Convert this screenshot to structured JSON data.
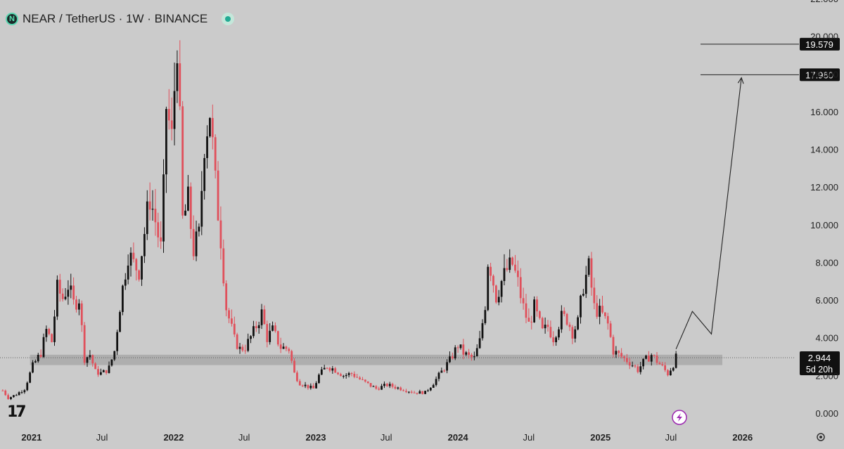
{
  "header": {
    "logo_letter": "N",
    "title": "NEAR / TetherUS · 1W · BINANCE",
    "status_color": "#22ab94"
  },
  "watermark": "TradingView",
  "bolt_icon": "lightning-icon",
  "colors": {
    "background": "#cbcbcb",
    "up": "#111111",
    "down": "#e0505b",
    "support_zone": "#a9a9a9",
    "price_tag": "#111111"
  },
  "chart_data": {
    "type": "candlestick",
    "symbol": "NEAR / TetherUS",
    "interval": "1W",
    "exchange": "BINANCE",
    "y_axis": {
      "ticks": [
        0,
        2,
        4,
        6,
        8,
        10,
        12,
        14,
        16,
        18,
        20,
        22
      ],
      "tick_labels": [
        "0.000",
        "2.000",
        "4.000",
        "6.000",
        "8.000",
        "10.000",
        "12.000",
        "14.000",
        "16.000",
        "18.000",
        "20.000",
        "22.000"
      ],
      "ylim": [
        0,
        22
      ]
    },
    "x_axis": {
      "tick_labels": [
        "2021",
        "Jul",
        "2022",
        "Jul",
        "2023",
        "Jul",
        "2024",
        "Jul",
        "2025",
        "Jul",
        "2026"
      ],
      "tick_dates": [
        "2021-01-01",
        "2021-07-01",
        "2022-01-01",
        "2022-07-01",
        "2023-01-01",
        "2023-07-01",
        "2024-01-01",
        "2024-07-01",
        "2025-01-01",
        "2025-07-01",
        "2026-01-01"
      ],
      "bold": [
        true,
        false,
        true,
        false,
        true,
        false,
        true,
        false,
        true,
        false,
        true
      ],
      "xlim": [
        "2020-10-12",
        "2026-05-15"
      ]
    },
    "close_path": [
      [
        "2020-10-19",
        1.2
      ],
      [
        "2020-11-02",
        0.8
      ],
      [
        "2020-11-23",
        1.0
      ],
      [
        "2020-12-14",
        1.3
      ],
      [
        "2021-01-04",
        2.5
      ],
      [
        "2021-01-25",
        3.2
      ],
      [
        "2021-02-08",
        4.4
      ],
      [
        "2021-02-22",
        3.8
      ],
      [
        "2021-03-08",
        6.6
      ],
      [
        "2021-03-22",
        6.1
      ],
      [
        "2021-04-05",
        6.8
      ],
      [
        "2021-04-19",
        5.8
      ],
      [
        "2021-05-03",
        6.1
      ],
      [
        "2021-05-17",
        2.9
      ],
      [
        "2021-05-31",
        3.1
      ],
      [
        "2021-06-14",
        2.2
      ],
      [
        "2021-07-01",
        2.1
      ],
      [
        "2021-07-19",
        2.4
      ],
      [
        "2021-08-02",
        3.3
      ],
      [
        "2021-08-16",
        5.7
      ],
      [
        "2021-09-06",
        8.5
      ],
      [
        "2021-09-20",
        7.9
      ],
      [
        "2021-10-04",
        7.6
      ],
      [
        "2021-10-18",
        9.6
      ],
      [
        "2021-11-01",
        11.5
      ],
      [
        "2021-11-15",
        10.2
      ],
      [
        "2021-12-01",
        8.5
      ],
      [
        "2021-12-13",
        16.3
      ],
      [
        "2021-12-27",
        14.5
      ],
      [
        "2022-01-10",
        20.0
      ],
      [
        "2022-01-24",
        10.2
      ],
      [
        "2022-02-07",
        11.2
      ],
      [
        "2022-02-21",
        8.7
      ],
      [
        "2022-03-07",
        9.4
      ],
      [
        "2022-03-21",
        14.5
      ],
      [
        "2022-04-04",
        16.1
      ],
      [
        "2022-04-18",
        12.1
      ],
      [
        "2022-05-02",
        9.3
      ],
      [
        "2022-05-16",
        5.6
      ],
      [
        "2022-06-06",
        3.9
      ],
      [
        "2022-06-20",
        3.4
      ],
      [
        "2022-07-04",
        3.5
      ],
      [
        "2022-07-25",
        4.3
      ],
      [
        "2022-08-15",
        5.3
      ],
      [
        "2022-08-29",
        4.0
      ],
      [
        "2022-09-12",
        4.4
      ],
      [
        "2022-10-03",
        3.5
      ],
      [
        "2022-10-24",
        3.4
      ],
      [
        "2022-11-07",
        2.1
      ],
      [
        "2022-11-21",
        1.6
      ],
      [
        "2022-12-12",
        1.4
      ],
      [
        "2022-12-26",
        1.3
      ],
      [
        "2023-01-09",
        2.0
      ],
      [
        "2023-01-30",
        2.5
      ],
      [
        "2023-02-20",
        2.3
      ],
      [
        "2023-03-13",
        2.0
      ],
      [
        "2023-04-03",
        2.1
      ],
      [
        "2023-05-01",
        1.7
      ],
      [
        "2023-06-05",
        1.3
      ],
      [
        "2023-07-03",
        1.5
      ],
      [
        "2023-08-07",
        1.3
      ],
      [
        "2023-09-11",
        1.1
      ],
      [
        "2023-10-09",
        1.1
      ],
      [
        "2023-10-30",
        1.6
      ],
      [
        "2023-11-20",
        2.2
      ],
      [
        "2023-12-11",
        2.8
      ],
      [
        "2024-01-01",
        3.6
      ],
      [
        "2024-01-15",
        3.2
      ],
      [
        "2024-01-29",
        3.0
      ],
      [
        "2024-02-12",
        2.9
      ],
      [
        "2024-02-26",
        3.8
      ],
      [
        "2024-03-11",
        5.8
      ],
      [
        "2024-03-18",
        8.1
      ],
      [
        "2024-03-25",
        7.7
      ],
      [
        "2024-04-08",
        6.2
      ],
      [
        "2024-04-22",
        7.0
      ],
      [
        "2024-05-06",
        7.6
      ],
      [
        "2024-05-20",
        7.9
      ],
      [
        "2024-06-03",
        6.9
      ],
      [
        "2024-06-17",
        5.6
      ],
      [
        "2024-07-01",
        4.7
      ],
      [
        "2024-07-15",
        5.6
      ],
      [
        "2024-08-05",
        4.3
      ],
      [
        "2024-08-19",
        4.6
      ],
      [
        "2024-09-02",
        4.0
      ],
      [
        "2024-09-23",
        5.1
      ],
      [
        "2024-10-07",
        5.0
      ],
      [
        "2024-10-21",
        4.3
      ],
      [
        "2024-11-04",
        4.8
      ],
      [
        "2024-11-18",
        6.8
      ],
      [
        "2024-12-02",
        7.7
      ],
      [
        "2024-12-16",
        5.6
      ],
      [
        "2025-01-06",
        5.2
      ],
      [
        "2025-01-20",
        4.7
      ],
      [
        "2025-02-03",
        3.3
      ],
      [
        "2025-02-24",
        3.0
      ],
      [
        "2025-03-17",
        2.7
      ],
      [
        "2025-04-07",
        2.3
      ],
      [
        "2025-04-21",
        2.7
      ],
      [
        "2025-05-12",
        3.1
      ],
      [
        "2025-06-02",
        2.6
      ],
      [
        "2025-06-23",
        2.1
      ],
      [
        "2025-07-07",
        2.6
      ],
      [
        "2025-07-14",
        2.944
      ]
    ],
    "support_zone": {
      "from": 2.55,
      "to": 3.1,
      "start": "2020-12-28",
      "end": "2025-11-10"
    },
    "target_levels": [
      {
        "price": 19.579,
        "label": "19.579",
        "start": "2025-09-15"
      },
      {
        "price": 17.96,
        "label": "17.960",
        "start": "2025-09-15"
      }
    ],
    "projection_path": [
      [
        "2025-07-14",
        3.4
      ],
      [
        "2025-08-25",
        5.4
      ],
      [
        "2025-10-13",
        4.2
      ],
      [
        "2025-12-29",
        17.8
      ]
    ],
    "current_price": {
      "value": 2.944,
      "label": "2.944",
      "countdown": "5d 20h"
    },
    "grid": false
  }
}
